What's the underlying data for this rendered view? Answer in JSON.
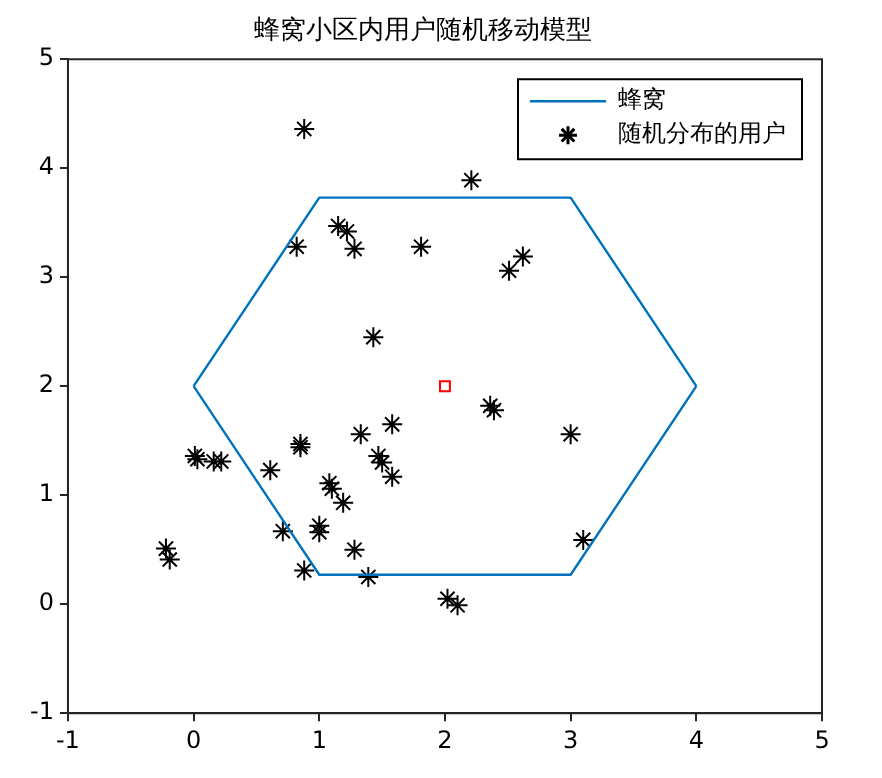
{
  "chart_data": {
    "type": "scatter",
    "title": "蜂窝小区内用户随机移动模型",
    "xlim": [
      -1,
      5
    ],
    "xticks": [
      -1,
      0,
      1,
      2,
      3,
      4,
      5
    ],
    "ylim": [
      -1,
      5
    ],
    "yticks": [
      -1,
      0,
      1,
      2,
      3,
      4,
      5
    ],
    "grid": false,
    "legend": "top right",
    "series": [
      {
        "name": "蜂窝",
        "type": "line",
        "color": "#0072bd",
        "marker": "none",
        "x": [
          0,
          1,
          3,
          4
        ],
        "values": [
          2,
          3.73,
          3.73,
          2
        ]
      },
      {
        "type": "line",
        "color": "#0072bd",
        "marker": "none",
        "x": [
          0,
          1,
          3,
          4
        ],
        "values": [
          2,
          0.27,
          0.27,
          2
        ]
      },
      {
        "name": "随机分布的用户",
        "type": "scatter",
        "color": "#000000",
        "marker": "cross",
        "x": [
          0.88,
          2.21,
          1.15,
          1.22,
          0.82,
          1.28,
          1.81,
          2.51,
          2.62,
          1.43,
          2.36,
          2.39,
          3.0,
          1.33,
          1.58,
          0.85,
          0.85,
          0.01,
          0.03,
          0.16,
          0.22,
          0.61,
          1.47,
          1.5,
          1.58,
          1.08,
          1.1,
          1.19,
          0.71,
          1.0,
          1.0,
          -0.22,
          -0.19,
          1.28,
          0.88,
          1.39,
          2.02,
          2.1,
          3.1
        ],
        "values": [
          4.36,
          3.89,
          3.47,
          3.42,
          3.28,
          3.26,
          3.28,
          3.06,
          3.19,
          2.45,
          1.82,
          1.78,
          1.56,
          1.56,
          1.65,
          1.47,
          1.44,
          1.36,
          1.33,
          1.31,
          1.31,
          1.23,
          1.36,
          1.3,
          1.17,
          1.11,
          1.06,
          0.93,
          0.67,
          0.72,
          0.66,
          0.51,
          0.41,
          0.5,
          0.31,
          0.25,
          0.05,
          -0.01,
          0.59
        ]
      },
      {
        "type": "scatter",
        "color": "#ff0000",
        "marker": "square",
        "x": [
          2
        ],
        "values": [
          2
        ]
      }
    ]
  }
}
